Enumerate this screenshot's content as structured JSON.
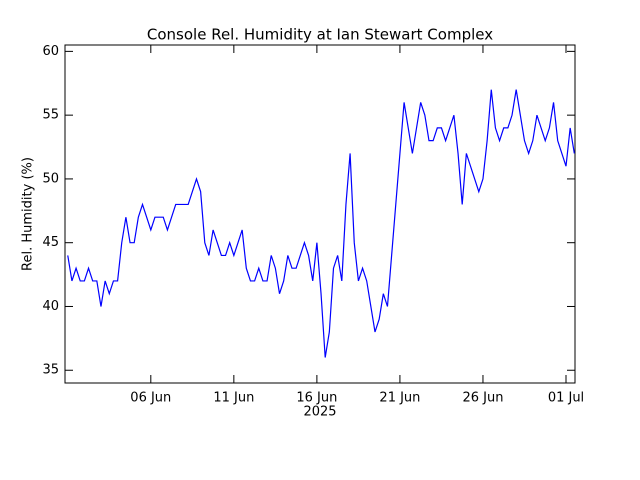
{
  "chart_data": {
    "type": "line",
    "title": "Console Rel. Humidity at Ian Stewart Complex",
    "ylabel": "Rel. Humidity (%)",
    "xlabel": "2025",
    "ylim": [
      34,
      60.5
    ],
    "yticks": [
      35,
      40,
      45,
      50,
      55,
      60
    ],
    "xlim": [
      "2025-05-31T20:00",
      "2025-07-01T13:00"
    ],
    "xticks": [
      {
        "value": "2025-06-06T00:00",
        "label": "06 Jun"
      },
      {
        "value": "2025-06-11T00:00",
        "label": "11 Jun"
      },
      {
        "value": "2025-06-16T00:00",
        "label": "16 Jun"
      },
      {
        "value": "2025-06-21T00:00",
        "label": "21 Jun"
      },
      {
        "value": "2025-06-26T00:00",
        "label": "26 Jun"
      },
      {
        "value": "2025-07-01T00:00",
        "label": "01 Jul"
      }
    ],
    "grid": false,
    "x": [
      "2025-06-01T00:00",
      "2025-06-01T06:00",
      "2025-06-01T12:00",
      "2025-06-01T18:00",
      "2025-06-02T00:00",
      "2025-06-02T06:00",
      "2025-06-02T12:00",
      "2025-06-02T18:00",
      "2025-06-03T00:00",
      "2025-06-03T06:00",
      "2025-06-03T12:00",
      "2025-06-03T18:00",
      "2025-06-04T00:00",
      "2025-06-04T06:00",
      "2025-06-04T12:00",
      "2025-06-04T18:00",
      "2025-06-05T00:00",
      "2025-06-05T06:00",
      "2025-06-05T12:00",
      "2025-06-05T18:00",
      "2025-06-06T00:00",
      "2025-06-06T06:00",
      "2025-06-06T12:00",
      "2025-06-06T18:00",
      "2025-06-07T00:00",
      "2025-06-07T06:00",
      "2025-06-07T12:00",
      "2025-06-07T18:00",
      "2025-06-08T00:00",
      "2025-06-08T06:00",
      "2025-06-08T12:00",
      "2025-06-08T18:00",
      "2025-06-09T00:00",
      "2025-06-09T06:00",
      "2025-06-09T12:00",
      "2025-06-09T18:00",
      "2025-06-10T00:00",
      "2025-06-10T06:00",
      "2025-06-10T12:00",
      "2025-06-10T18:00",
      "2025-06-11T00:00",
      "2025-06-11T06:00",
      "2025-06-11T12:00",
      "2025-06-11T18:00",
      "2025-06-12T00:00",
      "2025-06-12T06:00",
      "2025-06-12T12:00",
      "2025-06-12T18:00",
      "2025-06-13T00:00",
      "2025-06-13T06:00",
      "2025-06-13T12:00",
      "2025-06-13T18:00",
      "2025-06-14T00:00",
      "2025-06-14T06:00",
      "2025-06-14T12:00",
      "2025-06-14T18:00",
      "2025-06-15T00:00",
      "2025-06-15T06:00",
      "2025-06-15T12:00",
      "2025-06-15T18:00",
      "2025-06-16T00:00",
      "2025-06-16T06:00",
      "2025-06-16T12:00",
      "2025-06-16T18:00",
      "2025-06-17T00:00",
      "2025-06-17T06:00",
      "2025-06-17T12:00",
      "2025-06-17T18:00",
      "2025-06-18T00:00",
      "2025-06-18T06:00",
      "2025-06-18T12:00",
      "2025-06-18T18:00",
      "2025-06-19T00:00",
      "2025-06-19T06:00",
      "2025-06-19T12:00",
      "2025-06-19T18:00",
      "2025-06-20T00:00",
      "2025-06-20T06:00",
      "2025-06-20T12:00",
      "2025-06-20T18:00",
      "2025-06-21T00:00",
      "2025-06-21T06:00",
      "2025-06-21T12:00",
      "2025-06-21T18:00",
      "2025-06-22T00:00",
      "2025-06-22T06:00",
      "2025-06-22T12:00",
      "2025-06-22T18:00",
      "2025-06-23T00:00",
      "2025-06-23T06:00",
      "2025-06-23T12:00",
      "2025-06-23T18:00",
      "2025-06-24T00:00",
      "2025-06-24T06:00",
      "2025-06-24T12:00",
      "2025-06-24T18:00",
      "2025-06-25T00:00",
      "2025-06-25T06:00",
      "2025-06-25T12:00",
      "2025-06-25T18:00",
      "2025-06-26T00:00",
      "2025-06-26T06:00",
      "2025-06-26T12:00",
      "2025-06-26T18:00",
      "2025-06-27T00:00",
      "2025-06-27T06:00",
      "2025-06-27T12:00",
      "2025-06-27T18:00",
      "2025-06-28T00:00",
      "2025-06-28T06:00",
      "2025-06-28T12:00",
      "2025-06-28T18:00",
      "2025-06-29T00:00",
      "2025-06-29T06:00",
      "2025-06-29T12:00",
      "2025-06-29T18:00",
      "2025-06-30T00:00",
      "2025-06-30T06:00",
      "2025-06-30T12:00",
      "2025-06-30T18:00",
      "2025-07-01T00:00",
      "2025-07-01T06:00",
      "2025-07-01T12:00"
    ],
    "series": [
      {
        "color": "#0000ff",
        "values": [
          44,
          42,
          43,
          42,
          42,
          43,
          42,
          42,
          40,
          42,
          41,
          42,
          42,
          45,
          47,
          45,
          45,
          47,
          48,
          47,
          46,
          47,
          47,
          47,
          46,
          47,
          48,
          48,
          48,
          48,
          49,
          50,
          49,
          45,
          44,
          46,
          45,
          44,
          44,
          45,
          44,
          45,
          46,
          43,
          42,
          42,
          43,
          42,
          42,
          44,
          43,
          41,
          42,
          44,
          43,
          43,
          44,
          45,
          44,
          42,
          45,
          41,
          36,
          38,
          43,
          44,
          42,
          48,
          52,
          45,
          42,
          43,
          42,
          40,
          38,
          39,
          41,
          40,
          44,
          48,
          52,
          56,
          54,
          52,
          54,
          56,
          55,
          53,
          53,
          54,
          54,
          53,
          54,
          55,
          52,
          48,
          52,
          51,
          50,
          49,
          50,
          53,
          57,
          54,
          53,
          54,
          54,
          55,
          57,
          55,
          53,
          52,
          53,
          55,
          54,
          53,
          54,
          56,
          53,
          52,
          51,
          54,
          52
        ]
      }
    ]
  }
}
